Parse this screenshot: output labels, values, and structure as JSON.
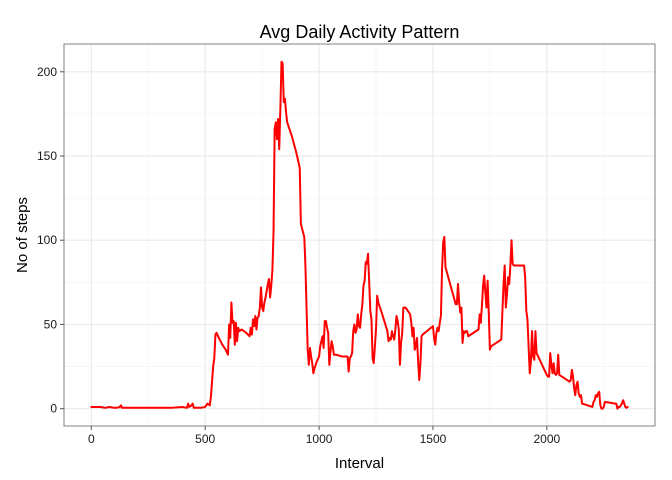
{
  "chart_data": {
    "type": "line",
    "title": "Avg Daily Activity Pattern",
    "xlabel": "Interval",
    "ylabel": "No of steps",
    "xlim": [
      -120,
      2475
    ],
    "ylim": [
      -10.3,
      216.5
    ],
    "xticks": [
      0,
      500,
      1000,
      1500,
      2000
    ],
    "yticks": [
      0,
      50,
      100,
      150,
      200
    ],
    "grid": true,
    "series": [
      {
        "color": "#ff0000",
        "points": [
          [
            0,
            1
          ],
          [
            20,
            1
          ],
          [
            40,
            1
          ],
          [
            60,
            0.5
          ],
          [
            80,
            1
          ],
          [
            100,
            0.5
          ],
          [
            110,
            0.5
          ],
          [
            125,
            1
          ],
          [
            130,
            2
          ],
          [
            135,
            0.5
          ],
          [
            160,
            0.5
          ],
          [
            200,
            0.5
          ],
          [
            250,
            0.5
          ],
          [
            300,
            0.5
          ],
          [
            350,
            0.5
          ],
          [
            400,
            1
          ],
          [
            420,
            0.5
          ],
          [
            425,
            3
          ],
          [
            430,
            1
          ],
          [
            440,
            2
          ],
          [
            445,
            3
          ],
          [
            450,
            0.5
          ],
          [
            460,
            0.5
          ],
          [
            480,
            0.5
          ],
          [
            500,
            1
          ],
          [
            510,
            3
          ],
          [
            520,
            2
          ],
          [
            525,
            7
          ],
          [
            530,
            16
          ],
          [
            535,
            25
          ],
          [
            540,
            30
          ],
          [
            545,
            44
          ],
          [
            550,
            45
          ],
          [
            560,
            42
          ],
          [
            575,
            38
          ],
          [
            590,
            35
          ],
          [
            600,
            32
          ],
          [
            605,
            50
          ],
          [
            610,
            42
          ],
          [
            615,
            63
          ],
          [
            620,
            51
          ],
          [
            625,
            52
          ],
          [
            630,
            38
          ],
          [
            635,
            51
          ],
          [
            640,
            40
          ],
          [
            645,
            48
          ],
          [
            650,
            46
          ],
          [
            660,
            47
          ],
          [
            680,
            45
          ],
          [
            695,
            43
          ],
          [
            700,
            48
          ],
          [
            705,
            44
          ],
          [
            710,
            53
          ],
          [
            715,
            49
          ],
          [
            720,
            55
          ],
          [
            725,
            47
          ],
          [
            730,
            54
          ],
          [
            735,
            55
          ],
          [
            740,
            60
          ],
          [
            745,
            72
          ],
          [
            750,
            60
          ],
          [
            755,
            58
          ],
          [
            760,
            63
          ],
          [
            765,
            66
          ],
          [
            770,
            70
          ],
          [
            775,
            74
          ],
          [
            780,
            77
          ],
          [
            785,
            66
          ],
          [
            790,
            73
          ],
          [
            795,
            82
          ],
          [
            800,
            105
          ],
          [
            805,
            166
          ],
          [
            810,
            170
          ],
          [
            815,
            160
          ],
          [
            820,
            172
          ],
          [
            825,
            154
          ],
          [
            830,
            178
          ],
          [
            835,
            206
          ],
          [
            840,
            205
          ],
          [
            845,
            182
          ],
          [
            850,
            184
          ],
          [
            855,
            176
          ],
          [
            860,
            170
          ],
          [
            865,
            168
          ],
          [
            880,
            162
          ],
          [
            900,
            152
          ],
          [
            915,
            143
          ],
          [
            920,
            110
          ],
          [
            925,
            107
          ],
          [
            935,
            102
          ],
          [
            940,
            85
          ],
          [
            945,
            60
          ],
          [
            950,
            35
          ],
          [
            955,
            26
          ],
          [
            960,
            36
          ],
          [
            965,
            31
          ],
          [
            970,
            27
          ],
          [
            975,
            21
          ],
          [
            980,
            24
          ],
          [
            990,
            28
          ],
          [
            1000,
            31
          ],
          [
            1005,
            37
          ],
          [
            1010,
            40
          ],
          [
            1015,
            43
          ],
          [
            1020,
            36
          ],
          [
            1025,
            52
          ],
          [
            1030,
            52
          ],
          [
            1035,
            48
          ],
          [
            1040,
            45
          ],
          [
            1045,
            26
          ],
          [
            1050,
            34
          ],
          [
            1055,
            40
          ],
          [
            1060,
            37
          ],
          [
            1065,
            32
          ],
          [
            1075,
            32
          ],
          [
            1100,
            31
          ],
          [
            1125,
            31
          ],
          [
            1130,
            22
          ],
          [
            1135,
            30
          ],
          [
            1140,
            31
          ],
          [
            1145,
            33
          ],
          [
            1150,
            46
          ],
          [
            1155,
            50
          ],
          [
            1160,
            45
          ],
          [
            1165,
            47
          ],
          [
            1170,
            56
          ],
          [
            1175,
            49
          ],
          [
            1180,
            48
          ],
          [
            1185,
            56
          ],
          [
            1190,
            62
          ],
          [
            1195,
            73
          ],
          [
            1200,
            76
          ],
          [
            1205,
            87
          ],
          [
            1210,
            86
          ],
          [
            1215,
            92
          ],
          [
            1220,
            75
          ],
          [
            1225,
            58
          ],
          [
            1230,
            53
          ],
          [
            1235,
            30
          ],
          [
            1240,
            27
          ],
          [
            1245,
            37
          ],
          [
            1250,
            47
          ],
          [
            1255,
            67
          ],
          [
            1260,
            63
          ],
          [
            1275,
            57
          ],
          [
            1300,
            46
          ],
          [
            1305,
            40
          ],
          [
            1310,
            42
          ],
          [
            1315,
            41
          ],
          [
            1320,
            46
          ],
          [
            1325,
            43
          ],
          [
            1330,
            41
          ],
          [
            1335,
            47
          ],
          [
            1340,
            55
          ],
          [
            1345,
            52
          ],
          [
            1350,
            47
          ],
          [
            1355,
            26
          ],
          [
            1360,
            39
          ],
          [
            1365,
            45
          ],
          [
            1370,
            60
          ],
          [
            1380,
            60
          ],
          [
            1400,
            56
          ],
          [
            1405,
            51
          ],
          [
            1410,
            43
          ],
          [
            1415,
            48
          ],
          [
            1420,
            35
          ],
          [
            1425,
            37
          ],
          [
            1430,
            42
          ],
          [
            1435,
            28
          ],
          [
            1440,
            17
          ],
          [
            1445,
            27
          ],
          [
            1450,
            43
          ],
          [
            1455,
            44
          ],
          [
            1500,
            49
          ],
          [
            1505,
            42
          ],
          [
            1510,
            38
          ],
          [
            1515,
            45
          ],
          [
            1520,
            48
          ],
          [
            1525,
            46
          ],
          [
            1530,
            51
          ],
          [
            1535,
            55
          ],
          [
            1540,
            83
          ],
          [
            1545,
            99
          ],
          [
            1550,
            102
          ],
          [
            1555,
            84
          ],
          [
            1600,
            62
          ],
          [
            1605,
            62
          ],
          [
            1610,
            74
          ],
          [
            1615,
            63
          ],
          [
            1620,
            57
          ],
          [
            1625,
            60
          ],
          [
            1630,
            39
          ],
          [
            1635,
            46
          ],
          [
            1640,
            45
          ],
          [
            1645,
            46
          ],
          [
            1650,
            46
          ],
          [
            1655,
            43
          ],
          [
            1700,
            47
          ],
          [
            1705,
            56
          ],
          [
            1710,
            51
          ],
          [
            1715,
            61
          ],
          [
            1720,
            73
          ],
          [
            1725,
            79
          ],
          [
            1730,
            69
          ],
          [
            1735,
            60
          ],
          [
            1740,
            76
          ],
          [
            1745,
            57
          ],
          [
            1750,
            35
          ],
          [
            1755,
            37
          ],
          [
            1800,
            41
          ],
          [
            1805,
            58
          ],
          [
            1810,
            74
          ],
          [
            1815,
            85
          ],
          [
            1820,
            60
          ],
          [
            1825,
            68
          ],
          [
            1830,
            78
          ],
          [
            1835,
            74
          ],
          [
            1840,
            85
          ],
          [
            1845,
            100
          ],
          [
            1850,
            86
          ],
          [
            1855,
            85
          ],
          [
            1900,
            85
          ],
          [
            1905,
            78
          ],
          [
            1910,
            58
          ],
          [
            1915,
            53
          ],
          [
            1920,
            37
          ],
          [
            1925,
            21
          ],
          [
            1930,
            28
          ],
          [
            1935,
            46
          ],
          [
            1940,
            31
          ],
          [
            1945,
            29
          ],
          [
            1950,
            46
          ],
          [
            1955,
            33
          ],
          [
            2000,
            20
          ],
          [
            2005,
            19
          ],
          [
            2010,
            19
          ],
          [
            2015,
            33
          ],
          [
            2020,
            26
          ],
          [
            2025,
            21
          ],
          [
            2030,
            27
          ],
          [
            2035,
            21
          ],
          [
            2040,
            20
          ],
          [
            2045,
            21
          ],
          [
            2050,
            32
          ],
          [
            2055,
            20
          ],
          [
            2100,
            16
          ],
          [
            2105,
            17
          ],
          [
            2110,
            23
          ],
          [
            2115,
            19
          ],
          [
            2120,
            12
          ],
          [
            2125,
            8
          ],
          [
            2130,
            14
          ],
          [
            2135,
            16
          ],
          [
            2140,
            9
          ],
          [
            2145,
            7
          ],
          [
            2150,
            8
          ],
          [
            2155,
            3
          ],
          [
            2200,
            1
          ],
          [
            2205,
            4
          ],
          [
            2210,
            5
          ],
          [
            2215,
            8
          ],
          [
            2220,
            7
          ],
          [
            2225,
            9
          ],
          [
            2230,
            10
          ],
          [
            2235,
            2
          ],
          [
            2240,
            0
          ],
          [
            2245,
            0
          ],
          [
            2250,
            1
          ],
          [
            2255,
            4
          ],
          [
            2300,
            3
          ],
          [
            2305,
            3
          ],
          [
            2310,
            0
          ],
          [
            2315,
            1
          ],
          [
            2320,
            1
          ],
          [
            2325,
            2
          ],
          [
            2330,
            3
          ],
          [
            2335,
            5
          ],
          [
            2340,
            3
          ],
          [
            2345,
            1
          ],
          [
            2350,
            0.5
          ],
          [
            2355,
            1
          ]
        ]
      }
    ]
  }
}
